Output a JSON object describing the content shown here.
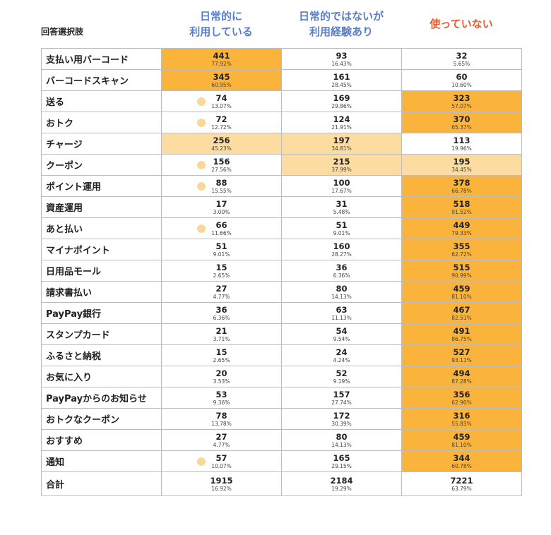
{
  "chart_data": {
    "type": "table",
    "row_header": "回答選択肢",
    "columns": [
      {
        "label": "日常的に\n利用している",
        "color": "#5b7fc7"
      },
      {
        "label": "日常的ではないが\n利用経験あり",
        "color": "#5b7fc7"
      },
      {
        "label": "使っていない",
        "color": "#ee5a2c"
      }
    ],
    "highlight_colors": {
      "strong": "#fab43c",
      "light": "#fcdca1",
      "dot": "#f9d799"
    },
    "rows": [
      {
        "label": "支払い用バーコード",
        "cells": [
          {
            "value": 441,
            "pct": "77.92%",
            "fill": "strong"
          },
          {
            "value": 93,
            "pct": "16.43%"
          },
          {
            "value": 32,
            "pct": "5.65%"
          }
        ]
      },
      {
        "label": "バーコードスキャン",
        "cells": [
          {
            "value": 345,
            "pct": "60.95%",
            "fill": "strong"
          },
          {
            "value": 161,
            "pct": "28.45%"
          },
          {
            "value": 60,
            "pct": "10.60%"
          }
        ]
      },
      {
        "label": "送る",
        "cells": [
          {
            "value": 74,
            "pct": "13.07%",
            "dot": true
          },
          {
            "value": 169,
            "pct": "29.86%"
          },
          {
            "value": 323,
            "pct": "57.07%",
            "fill": "strong"
          }
        ]
      },
      {
        "label": "おトク",
        "cells": [
          {
            "value": 72,
            "pct": "12.72%",
            "dot": true
          },
          {
            "value": 124,
            "pct": "21.91%"
          },
          {
            "value": 370,
            "pct": "65.37%",
            "fill": "strong"
          }
        ]
      },
      {
        "label": "チャージ",
        "cells": [
          {
            "value": 256,
            "pct": "45.23%",
            "fill": "light"
          },
          {
            "value": 197,
            "pct": "34.81%",
            "fill": "light"
          },
          {
            "value": 113,
            "pct": "19.96%"
          }
        ]
      },
      {
        "label": "クーポン",
        "cells": [
          {
            "value": 156,
            "pct": "27.56%",
            "dot": true
          },
          {
            "value": 215,
            "pct": "37.99%",
            "fill": "light"
          },
          {
            "value": 195,
            "pct": "34.45%",
            "fill": "light"
          }
        ]
      },
      {
        "label": "ポイント運用",
        "cells": [
          {
            "value": 88,
            "pct": "15.55%",
            "dot": true
          },
          {
            "value": 100,
            "pct": "17.67%"
          },
          {
            "value": 378,
            "pct": "66.78%",
            "fill": "strong"
          }
        ]
      },
      {
        "label": "資産運用",
        "cells": [
          {
            "value": 17,
            "pct": "3.00%"
          },
          {
            "value": 31,
            "pct": "5.48%"
          },
          {
            "value": 518,
            "pct": "91.52%",
            "fill": "strong"
          }
        ]
      },
      {
        "label": "あと払い",
        "cells": [
          {
            "value": 66,
            "pct": "11.66%",
            "dot": true
          },
          {
            "value": 51,
            "pct": "9.01%"
          },
          {
            "value": 449,
            "pct": "79.33%",
            "fill": "strong"
          }
        ]
      },
      {
        "label": "マイナポイント",
        "cells": [
          {
            "value": 51,
            "pct": "9.01%"
          },
          {
            "value": 160,
            "pct": "28.27%"
          },
          {
            "value": 355,
            "pct": "62.72%",
            "fill": "strong"
          }
        ]
      },
      {
        "label": "日用品モール",
        "cells": [
          {
            "value": 15,
            "pct": "2.65%"
          },
          {
            "value": 36,
            "pct": "6.36%"
          },
          {
            "value": 515,
            "pct": "90.99%",
            "fill": "strong"
          }
        ]
      },
      {
        "label": "請求書払い",
        "cells": [
          {
            "value": 27,
            "pct": "4.77%"
          },
          {
            "value": 80,
            "pct": "14.13%"
          },
          {
            "value": 459,
            "pct": "81.10%",
            "fill": "strong"
          }
        ]
      },
      {
        "label": "PayPay銀行",
        "cells": [
          {
            "value": 36,
            "pct": "6.36%"
          },
          {
            "value": 63,
            "pct": "11.13%"
          },
          {
            "value": 467,
            "pct": "82.51%",
            "fill": "strong"
          }
        ]
      },
      {
        "label": "スタンプカード",
        "cells": [
          {
            "value": 21,
            "pct": "3.71%"
          },
          {
            "value": 54,
            "pct": "9.54%"
          },
          {
            "value": 491,
            "pct": "86.75%",
            "fill": "strong"
          }
        ]
      },
      {
        "label": "ふるさと納税",
        "cells": [
          {
            "value": 15,
            "pct": "2.65%"
          },
          {
            "value": 24,
            "pct": "4.24%"
          },
          {
            "value": 527,
            "pct": "93.11%",
            "fill": "strong"
          }
        ]
      },
      {
        "label": "お気に入り",
        "cells": [
          {
            "value": 20,
            "pct": "3.53%"
          },
          {
            "value": 52,
            "pct": "9.19%"
          },
          {
            "value": 494,
            "pct": "87.28%",
            "fill": "strong"
          }
        ]
      },
      {
        "label": "PayPayからのお知らせ",
        "cells": [
          {
            "value": 53,
            "pct": "9.36%"
          },
          {
            "value": 157,
            "pct": "27.74%"
          },
          {
            "value": 356,
            "pct": "62.90%",
            "fill": "strong"
          }
        ]
      },
      {
        "label": "おトクなクーポン",
        "cells": [
          {
            "value": 78,
            "pct": "13.78%"
          },
          {
            "value": 172,
            "pct": "30.39%"
          },
          {
            "value": 316,
            "pct": "55.83%",
            "fill": "strong"
          }
        ]
      },
      {
        "label": "おすすめ",
        "cells": [
          {
            "value": 27,
            "pct": "4.77%"
          },
          {
            "value": 80,
            "pct": "14.13%"
          },
          {
            "value": 459,
            "pct": "81.10%",
            "fill": "strong"
          }
        ]
      },
      {
        "label": "通知",
        "cells": [
          {
            "value": 57,
            "pct": "10.07%",
            "dot": true
          },
          {
            "value": 165,
            "pct": "29.15%"
          },
          {
            "value": 344,
            "pct": "60.78%",
            "fill": "strong"
          }
        ]
      }
    ],
    "total": {
      "label": "合計",
      "cells": [
        {
          "value": 1915,
          "pct": "16.92%"
        },
        {
          "value": 2184,
          "pct": "19.29%"
        },
        {
          "value": 7221,
          "pct": "63.79%"
        }
      ]
    }
  }
}
